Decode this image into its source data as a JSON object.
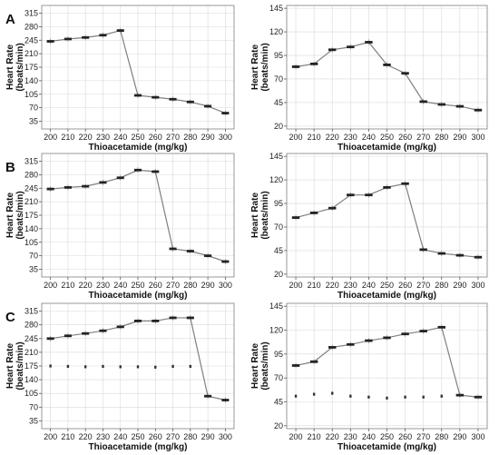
{
  "figure": {
    "panel_letters": [
      "A",
      "B",
      "C"
    ],
    "colors": {
      "grid": "#d9d9d9",
      "frame": "#7f7f7f",
      "line": "#7f7f7f",
      "box": "#222222"
    }
  },
  "chart_data": [
    {
      "panel": "A",
      "type": "line",
      "xlabel": "Thioacetamide (mg/kg)",
      "ylabel": "Heart Rate (beats/min)",
      "x": [
        200,
        210,
        220,
        230,
        240,
        250,
        260,
        270,
        280,
        290,
        300
      ],
      "xlim": [
        195,
        305
      ],
      "ylim": [
        15,
        335
      ],
      "yticks": [
        35,
        70,
        105,
        140,
        175,
        210,
        245,
        280,
        315
      ],
      "series": [
        {
          "values": [
            242,
            248,
            252,
            258,
            270,
            102,
            97,
            92,
            85,
            74,
            56
          ]
        }
      ],
      "secondary_points": []
    },
    {
      "panel": "A",
      "type": "line",
      "xlabel": "Thioacetamide (mg/kg)",
      "ylabel": "",
      "x": [
        200,
        210,
        220,
        230,
        240,
        250,
        260,
        270,
        280,
        290,
        300
      ],
      "xlim": [
        195,
        305
      ],
      "ylim": [
        17,
        148
      ],
      "yticks": [
        20,
        45,
        70,
        95,
        120,
        145
      ],
      "series": [
        {
          "values": [
            83,
            86,
            101,
            104,
            109,
            85,
            76,
            46,
            43,
            41,
            37
          ]
        }
      ],
      "secondary_points": []
    },
    {
      "panel": "B",
      "type": "line",
      "xlabel": "Thioacetamide (mg/kg)",
      "ylabel": "Heart Rate (beats/min)",
      "x": [
        200,
        210,
        220,
        230,
        240,
        250,
        260,
        270,
        280,
        290,
        300
      ],
      "xlim": [
        195,
        305
      ],
      "ylim": [
        15,
        335
      ],
      "yticks": [
        35,
        70,
        105,
        140,
        175,
        210,
        245,
        280,
        315
      ],
      "series": [
        {
          "values": [
            243,
            247,
            250,
            260,
            272,
            292,
            288,
            88,
            82,
            70,
            55
          ]
        }
      ],
      "secondary_points": []
    },
    {
      "panel": "B",
      "type": "line",
      "xlabel": "Thioacetamide (mg/kg)",
      "ylabel": "",
      "x": [
        200,
        210,
        220,
        230,
        240,
        250,
        260,
        270,
        280,
        290,
        300
      ],
      "xlim": [
        195,
        305
      ],
      "ylim": [
        17,
        148
      ],
      "yticks": [
        20,
        45,
        70,
        95,
        120,
        145
      ],
      "series": [
        {
          "values": [
            80,
            85,
            90,
            104,
            104,
            112,
            116,
            46,
            42,
            40,
            38
          ]
        }
      ],
      "secondary_points": []
    },
    {
      "panel": "C",
      "type": "line",
      "xlabel": "Thioacetamide (mg/kg)",
      "ylabel": "Heart Rate (beats/min)",
      "x": [
        200,
        210,
        220,
        230,
        240,
        250,
        260,
        270,
        280,
        290,
        300
      ],
      "xlim": [
        195,
        305
      ],
      "ylim": [
        15,
        335
      ],
      "yticks": [
        35,
        70,
        105,
        140,
        175,
        210,
        245,
        280,
        315
      ],
      "series": [
        {
          "values": [
            245,
            252,
            258,
            265,
            275,
            290,
            290,
            298,
            298,
            98,
            88
          ]
        }
      ],
      "secondary_points": [
        175,
        174,
        173,
        174,
        173,
        173,
        172,
        174,
        174
      ]
    },
    {
      "panel": "C",
      "type": "line",
      "xlabel": "Thioacetamide (mg/kg)",
      "ylabel": "",
      "x": [
        200,
        210,
        220,
        230,
        240,
        250,
        260,
        270,
        280,
        290,
        300
      ],
      "xlim": [
        195,
        305
      ],
      "ylim": [
        17,
        148
      ],
      "yticks": [
        20,
        45,
        70,
        95,
        120,
        145
      ],
      "series": [
        {
          "values": [
            83,
            87,
            102,
            105,
            109,
            112,
            116,
            119,
            123,
            52,
            50
          ]
        }
      ],
      "secondary_points": [
        51,
        53,
        54,
        51,
        50,
        49,
        50,
        50,
        51
      ]
    }
  ]
}
